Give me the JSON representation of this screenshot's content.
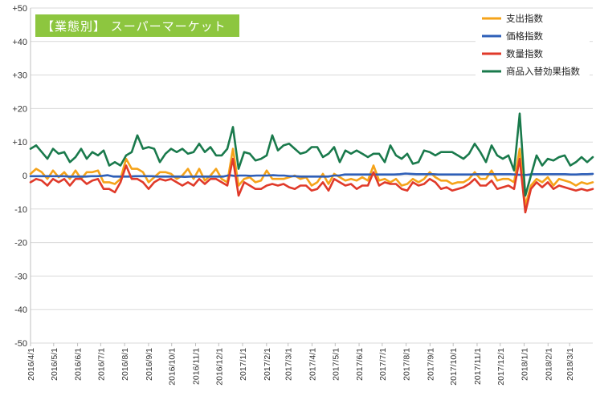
{
  "colors": {
    "title_bg": "#8DC63F",
    "grid": "#d9d9d9",
    "axis": "#bfbfbf"
  },
  "chart_data": {
    "type": "line",
    "title": "【業態別】 スーパーマーケット",
    "ylim": [
      -50,
      50
    ],
    "yticks": [
      "+50",
      "+40",
      "+30",
      "+20",
      "+10",
      "0",
      "-10",
      "-20",
      "-30",
      "-40",
      "-50"
    ],
    "ytick_values": [
      50,
      40,
      30,
      20,
      10,
      0,
      -10,
      -20,
      -30,
      -40,
      -50
    ],
    "x_start": "2016/4/1",
    "x_end": "2018/3/31",
    "xticks": [
      "2016/4/1",
      "2016/5/1",
      "2016/6/1",
      "2016/7/1",
      "2016/8/1",
      "2016/9/1",
      "2016/10/1",
      "2016/11/1",
      "2016/12/1",
      "2017/1/1",
      "2017/2/1",
      "2017/3/1",
      "2017/4/1",
      "2017/5/1",
      "2017/6/1",
      "2017/7/1",
      "2017/8/1",
      "2017/9/1",
      "2017/10/1",
      "2017/11/1",
      "2017/12/1",
      "2018/1/1",
      "2018/2/1",
      "2018/3/1"
    ],
    "grid": true,
    "legend_position": "top-right",
    "series": [
      {
        "name": "支出指数",
        "color": "#F5A31A",
        "values": [
          0.5,
          2,
          1,
          -1,
          1.5,
          -0.5,
          1,
          -1,
          1.5,
          -1,
          1,
          1,
          1.5,
          -2,
          -2,
          -2.5,
          -1,
          5,
          2,
          2,
          1,
          -2,
          -0.5,
          1,
          1,
          0.5,
          -1,
          0,
          2,
          -1,
          2,
          -1.5,
          0,
          2,
          -1,
          -2,
          8,
          -3,
          -1,
          -0.5,
          -2,
          -1.5,
          1.5,
          -1,
          -1,
          -1,
          -0.5,
          0,
          -1,
          -0.5,
          -3,
          -2,
          0.5,
          -2.5,
          0.5,
          -0.5,
          -1.5,
          -1,
          -1.5,
          -0.5,
          -1.5,
          3,
          -1.5,
          -1,
          -2,
          -1,
          -3,
          -2.5,
          -1,
          -2,
          -1,
          1,
          -0.5,
          -1.5,
          -1.5,
          -2.5,
          -2,
          -2,
          -1,
          1,
          -1,
          -1,
          1.5,
          -1.5,
          -1,
          -1,
          -2,
          8,
          -9,
          -3,
          -1,
          -2,
          -0.5,
          -3,
          -1,
          -1.5,
          -2,
          -3,
          -2,
          -2.5,
          -2
        ],
        "labels_visible": false
      },
      {
        "name": "価格指数",
        "color": "#2E5FB8",
        "values": [
          -0.2,
          -0.2,
          -0.2,
          -0.2,
          -0.2,
          -0.2,
          -0.2,
          -0.3,
          -0.3,
          -0.3,
          -0.3,
          -0.2,
          -0.2,
          -0.1,
          0.1,
          -0.3,
          -0.3,
          -0.3,
          -0.3,
          -0.2,
          -0.2,
          -0.2,
          -0.2,
          -0.3,
          -0.3,
          -0.3,
          -0.3,
          -0.3,
          -0.4,
          -0.3,
          -0.3,
          -0.3,
          -0.3,
          -0.3,
          -0.3,
          -0.3,
          0.1,
          -0.1,
          0.0,
          0.0,
          -0.1,
          0.0,
          0.0,
          0.0,
          0.1,
          0.0,
          0.0,
          -0.2,
          -0.2,
          -0.3,
          -0.3,
          -0.3,
          -0.3,
          -0.3,
          -0.3,
          0.0,
          0.0,
          0.3,
          0.3,
          0.3,
          0.3,
          0.3,
          0.3,
          0.3,
          0.3,
          0.3,
          0.3,
          0.4,
          0.6,
          0.5,
          0.4,
          0.4,
          0.4,
          0.4,
          0.3,
          0.3,
          0.3,
          0.3,
          0.3,
          0.3,
          0.3,
          0.4,
          0.4,
          0.4,
          0.4,
          0.4,
          0.4,
          0.4,
          0.3,
          0.2,
          0.2,
          0.4,
          0.4,
          0.4,
          0.4,
          0.4,
          0.4,
          0.4,
          0.3,
          0.3,
          0.4,
          0.4,
          0.5
        ],
        "labels_visible": false
      },
      {
        "name": "数量指数",
        "color": "#E03A2A",
        "values": [
          -2,
          -1,
          -1.5,
          -3,
          -1,
          -2,
          -1,
          -3,
          -1,
          -1,
          -2.5,
          -1.5,
          -1,
          -4,
          -4,
          -5,
          -2,
          3,
          -1,
          -1,
          -2,
          -4,
          -2,
          -1,
          -1.5,
          -1,
          -2,
          -3,
          -2,
          -3,
          -1,
          -2.5,
          -1,
          -1,
          -2,
          -3,
          5,
          -6,
          -2,
          -3,
          -4,
          -4,
          -3,
          -2.5,
          -3,
          -2.5,
          -3.5,
          -4,
          -3,
          -3,
          -4.5,
          -4,
          -2,
          -4.5,
          -1,
          -2,
          -3,
          -2.5,
          -4,
          -3,
          -3,
          1,
          -3,
          -2,
          -2.5,
          -2.5,
          -4,
          -4.5,
          -2,
          -3,
          -2.5,
          -1,
          -2,
          -4,
          -3.5,
          -4.5,
          -4,
          -3.5,
          -2.5,
          -1,
          -3,
          -3,
          -1.5,
          -4,
          -3.5,
          -3,
          -4,
          5,
          -11,
          -4,
          -2,
          -3.5,
          -2,
          -4,
          -3,
          -3.5,
          -4,
          -4.5,
          -4,
          -4.5,
          -4
        ],
        "labels_visible": false
      },
      {
        "name": "商品入替効果指数",
        "color": "#1A7A4C",
        "values": [
          8,
          9,
          7,
          5,
          8,
          6.5,
          7,
          4,
          5.5,
          8,
          5,
          7,
          6,
          7.5,
          3,
          4,
          3,
          6,
          7,
          12,
          8,
          8.5,
          8,
          4,
          6.5,
          8,
          7,
          8,
          6.5,
          7,
          9.5,
          7,
          8.5,
          6,
          6,
          8,
          14.5,
          2,
          7,
          6.5,
          4.5,
          5,
          6,
          12,
          7.5,
          9,
          9.5,
          8,
          6.5,
          7,
          8.5,
          8.5,
          5.5,
          6.5,
          8.5,
          4,
          7.5,
          6.5,
          7.5,
          6.5,
          5.5,
          6.5,
          6.5,
          4,
          9,
          6,
          5,
          6.5,
          3.5,
          4,
          7.5,
          7,
          6,
          7,
          7,
          7,
          6,
          5,
          6.5,
          9.5,
          7,
          4,
          9,
          6,
          5,
          6,
          1.5,
          18.5,
          -6,
          0,
          6,
          3,
          5,
          4.5,
          5.5,
          6,
          3,
          4,
          5.5,
          4,
          5.5
        ],
        "labels_visible": false
      }
    ]
  }
}
